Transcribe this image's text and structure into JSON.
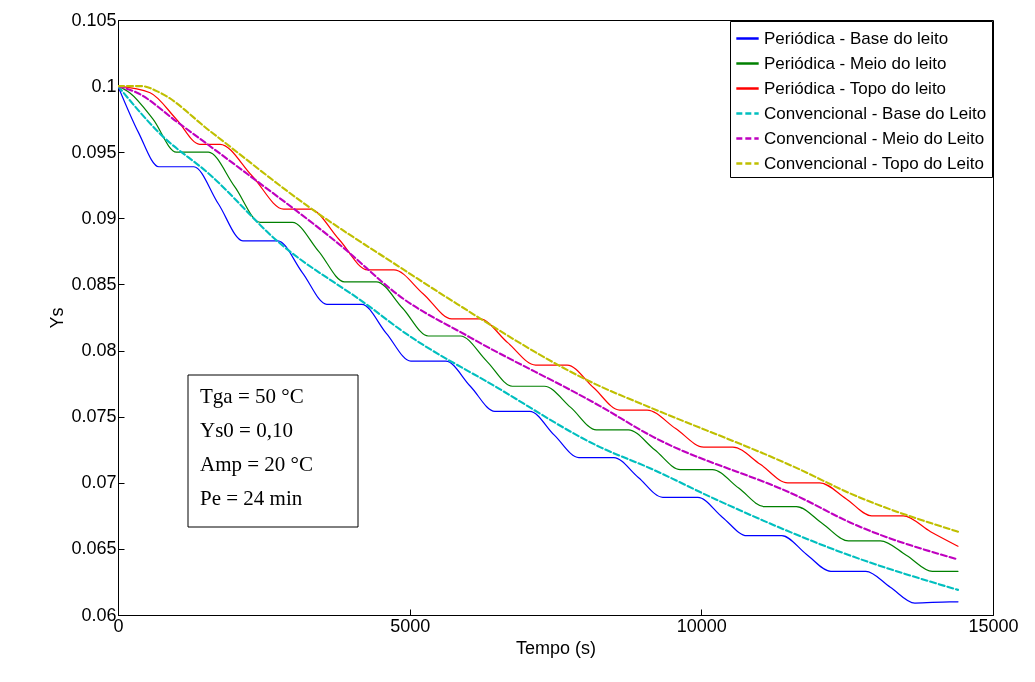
{
  "chart_data": {
    "type": "line",
    "xlabel": "Tempo (s)",
    "ylabel": "Ys",
    "xlim": [
      0,
      15000
    ],
    "xticks": [
      0,
      5000,
      10000,
      15000
    ],
    "ylim": [
      0.06,
      0.105
    ],
    "yticks": [
      0.06,
      0.065,
      0.07,
      0.075,
      0.08,
      0.085,
      0.09,
      0.095,
      0.1,
      0.105
    ],
    "grid": false,
    "legend": "top right",
    "marker": "none",
    "annotations": [
      "Tga = 50 °C",
      "Ys0 = 0,10",
      "Amp = 20 °C",
      "Pe = 24 min"
    ],
    "series": [
      {
        "name": "Periódica - Base do leito",
        "color": "#0000ff",
        "line_style": "solid",
        "x": [
          0,
          350,
          700,
          1300,
          1720,
          2140,
          2740,
          3160,
          3580,
          4180,
          4600,
          5020,
          5620,
          6040,
          6460,
          7060,
          7480,
          7900,
          8500,
          8920,
          9340,
          9940,
          10360,
          10780,
          11380,
          11800,
          12220,
          12820,
          13240,
          13660,
          14260,
          14400
        ],
        "values": [
          0.1,
          0.0965,
          0.0939,
          0.0939,
          0.0911,
          0.0883,
          0.0883,
          0.0859,
          0.0835,
          0.0835,
          0.0813,
          0.0792,
          0.0792,
          0.0773,
          0.0754,
          0.0754,
          0.0736,
          0.0719,
          0.0719,
          0.0704,
          0.0689,
          0.0689,
          0.0674,
          0.066,
          0.066,
          0.0646,
          0.0633,
          0.0633,
          0.0621,
          0.0609,
          0.061,
          0.061
        ]
      },
      {
        "name": "Periódica - Meio do leito",
        "color": "#008000",
        "line_style": "solid",
        "x": [
          0,
          200,
          600,
          1000,
          1550,
          2000,
          2440,
          2990,
          3440,
          3880,
          4430,
          4880,
          5320,
          5870,
          6320,
          6760,
          7310,
          7760,
          8200,
          8750,
          9200,
          9640,
          10190,
          10640,
          11080,
          11630,
          12080,
          12520,
          13070,
          13520,
          13960,
          14400
        ],
        "values": [
          0.1,
          0.0995,
          0.0975,
          0.095,
          0.095,
          0.0924,
          0.0897,
          0.0897,
          0.0875,
          0.0852,
          0.0852,
          0.0832,
          0.0811,
          0.0811,
          0.0792,
          0.0773,
          0.0773,
          0.0757,
          0.074,
          0.074,
          0.0725,
          0.071,
          0.071,
          0.0696,
          0.0682,
          0.0682,
          0.0669,
          0.0656,
          0.0656,
          0.0645,
          0.0633,
          0.0633
        ]
      },
      {
        "name": "Periódica - Topo do leito",
        "color": "#ff0000",
        "line_style": "solid",
        "x": [
          0,
          550,
          1000,
          1400,
          1750,
          2300,
          2840,
          3290,
          3790,
          4280,
          4730,
          5230,
          5720,
          6200,
          6680,
          7160,
          7700,
          8150,
          8600,
          9070,
          9560,
          10040,
          10540,
          11010,
          11480,
          12030,
          12480,
          12920,
          13460,
          13930,
          14400
        ],
        "values": [
          0.1,
          0.0995,
          0.0975,
          0.0956,
          0.0956,
          0.0932,
          0.0907,
          0.0907,
          0.0884,
          0.0861,
          0.0861,
          0.0843,
          0.0824,
          0.0824,
          0.0806,
          0.0789,
          0.0789,
          0.0772,
          0.0755,
          0.0755,
          0.0741,
          0.0727,
          0.0727,
          0.0714,
          0.07,
          0.07,
          0.0688,
          0.0675,
          0.0675,
          0.0663,
          0.0652
        ]
      },
      {
        "name": "Convencional - Base do Leito",
        "color": "#00bfbf",
        "line_style": "dashed",
        "x": [
          0,
          720,
          1577,
          2726,
          4320,
          4834,
          6500,
          8263,
          9120,
          10269,
          12549,
          14400
        ],
        "values": [
          0.1,
          0.0964,
          0.0933,
          0.0883,
          0.0833,
          0.0816,
          0.0772,
          0.0727,
          0.0711,
          0.0687,
          0.0645,
          0.0619
        ]
      },
      {
        "name": "Convencional - Meio do Leito",
        "color": "#bf00bf",
        "line_style": "dashed",
        "x": [
          0,
          326,
          1011,
          2143,
          3857,
          4834,
          6034,
          8263,
          9120,
          11691,
          12549,
          14400
        ],
        "values": [
          0.1,
          0.0995,
          0.0973,
          0.0936,
          0.0878,
          0.0841,
          0.081,
          0.0758,
          0.0736,
          0.0689,
          0.067,
          0.0642
        ]
      },
      {
        "name": "Convencional - Topo do Leito",
        "color": "#bfbf00",
        "line_style": "dashed",
        "x": [
          0,
          400,
          720,
          1577,
          3291,
          4834,
          5572,
          8263,
          9120,
          11691,
          12549,
          14400
        ],
        "values": [
          0.1,
          0.1,
          0.0995,
          0.0966,
          0.0908,
          0.0863,
          0.0842,
          0.0773,
          0.0757,
          0.071,
          0.0692,
          0.0663
        ]
      }
    ]
  }
}
